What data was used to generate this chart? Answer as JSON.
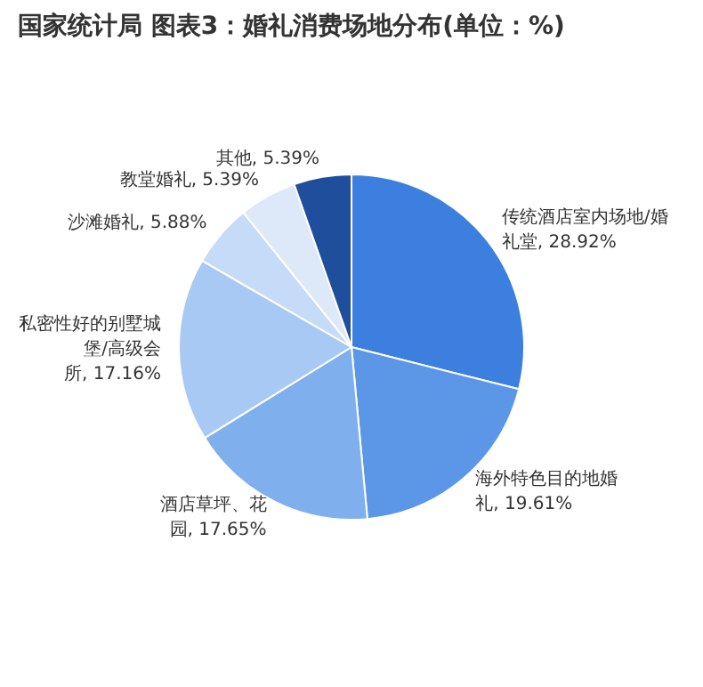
{
  "chart_data": {
    "type": "pie",
    "title": "国家统计局 图表3：婚礼消费场地分布(单位：%)",
    "categories": [
      "传统酒店室内场地/婚礼堂",
      "海外特色目的地婚礼",
      "酒店草坪、花园",
      "私密性好的别墅城堡/高级会所",
      "沙滩婚礼",
      "教堂婚礼",
      "其他"
    ],
    "values": [
      28.92,
      19.61,
      17.65,
      17.16,
      5.88,
      5.39,
      5.39
    ],
    "value_labels": [
      "28.92%",
      "19.61%",
      "17.65%",
      "17.16%",
      "5.88%",
      "5.39%",
      "5.39%"
    ],
    "colors": [
      "#3d7fde",
      "#5b97e6",
      "#80afee",
      "#a8c9f4",
      "#c6dbf8",
      "#dde8f8",
      "#1f4e9c"
    ],
    "legend": false
  }
}
